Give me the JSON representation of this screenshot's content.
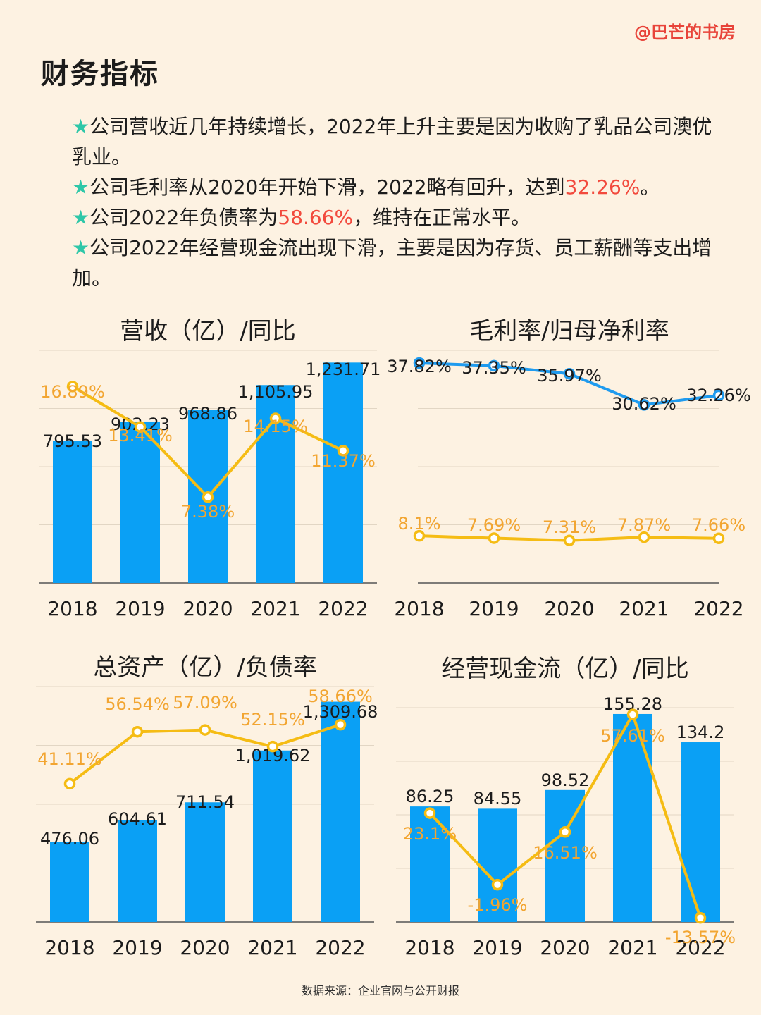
{
  "watermark": "@巴芒的书房",
  "page_title": "财务指标",
  "bullets": [
    {
      "star": "★",
      "segments": [
        "公司营收近几年持续增长，2022年上升主要是因为收购了乳品公司澳优乳业。"
      ]
    },
    {
      "star": "★",
      "segments": [
        "公司毛利率从2020年开始下滑，2022略有回升，达到",
        "32.26%",
        "。"
      ]
    },
    {
      "star": "★",
      "segments": [
        "公司2022年负债率为",
        "58.66%",
        "，维持在正常水平。"
      ]
    },
    {
      "star": "★",
      "segments": [
        "公司2022年经营现金流出现下滑，主要是因为存货、员工薪酬等支出增加。"
      ]
    }
  ],
  "colors": {
    "bar": "#0aa0f5",
    "line_yellow": "#f5bc14",
    "line_blue": "#1f9bef",
    "label_orange": "#f2a531",
    "highlight": "#f24a3d",
    "star": "#2ec7a8"
  },
  "chart_data": [
    {
      "type": "bar+line",
      "title": "营收（亿）/同比",
      "categories": [
        "2018",
        "2019",
        "2020",
        "2021",
        "2022"
      ],
      "series": [
        {
          "kind": "bar",
          "values": [
            795.53,
            902.23,
            968.86,
            1105.95,
            1231.71
          ],
          "labels": [
            "795.53",
            "902.23",
            "968.86",
            "1,105.95",
            "1,231.71"
          ]
        },
        {
          "kind": "line",
          "values": [
            16.89,
            13.41,
            7.38,
            14.15,
            11.37
          ],
          "labels": [
            "16.89%",
            "13.41%",
            "7.38%",
            "14.15%",
            "11.37%"
          ]
        }
      ],
      "bar_range": [
        0,
        1300
      ],
      "line_range": [
        0,
        20
      ],
      "grid": true
    },
    {
      "type": "line",
      "title": "毛利率/归母净利率",
      "categories": [
        "2018",
        "2019",
        "2020",
        "2021",
        "2022"
      ],
      "series": [
        {
          "kind": "line",
          "color": "blue",
          "values": [
            37.82,
            37.35,
            35.97,
            30.62,
            32.26
          ],
          "labels": [
            "37.82%",
            "37.35%",
            "35.97%",
            "30.62%",
            "32.26%"
          ]
        },
        {
          "kind": "line",
          "color": "yellow",
          "values": [
            8.1,
            7.69,
            7.31,
            7.87,
            7.66
          ],
          "labels": [
            "8.1%",
            "7.69%",
            "7.31%",
            "7.87%",
            "7.66%"
          ]
        }
      ],
      "y_range": [
        0,
        40
      ],
      "grid": true
    },
    {
      "type": "bar+line",
      "title": "总资产（亿）/负债率",
      "categories": [
        "2018",
        "2019",
        "2020",
        "2021",
        "2022"
      ],
      "series": [
        {
          "kind": "bar",
          "values": [
            476.06,
            604.61,
            711.54,
            1019.62,
            1309.68
          ],
          "labels": [
            "476.06",
            "604.61",
            "711.54",
            "1,019.62",
            "1,309.68"
          ]
        },
        {
          "kind": "line",
          "values": [
            41.11,
            56.54,
            57.09,
            52.15,
            58.66
          ],
          "labels": [
            "41.11%",
            "56.54%",
            "57.09%",
            "52.15%",
            "58.66%"
          ]
        }
      ],
      "bar_range": [
        0,
        1400
      ],
      "line_range": [
        0,
        70
      ],
      "grid": true
    },
    {
      "type": "bar+line",
      "title": "经营现金流（亿）/同比",
      "categories": [
        "2018",
        "2019",
        "2020",
        "2021",
        "2022"
      ],
      "series": [
        {
          "kind": "bar",
          "values": [
            86.25,
            84.55,
            98.52,
            155.28,
            134.2
          ],
          "labels": [
            "86.25",
            "84.55",
            "98.52",
            "155.28",
            "134.2"
          ]
        },
        {
          "kind": "line",
          "values": [
            23.1,
            -1.96,
            16.51,
            57.61,
            -13.57
          ],
          "labels": [
            "23.1%",
            "-1.96%",
            "16.51%",
            "57.61%",
            "-13.57%"
          ]
        }
      ],
      "bar_range": [
        0,
        160
      ],
      "line_range": [
        -15,
        60
      ],
      "grid": true
    }
  ],
  "source": "数据来源：企业官网与公开财报"
}
